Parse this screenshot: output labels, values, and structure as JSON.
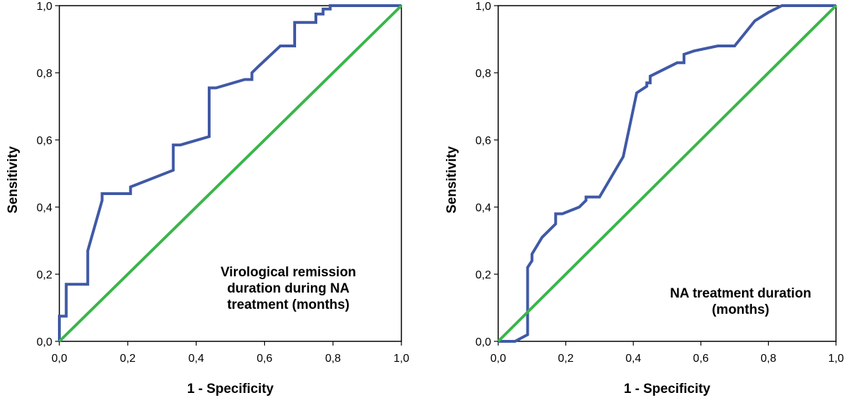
{
  "chart_data": [
    {
      "type": "line",
      "title": "",
      "annotation_lines": [
        "Virological remission",
        "duration during NA",
        "treatment (months)"
      ],
      "xlabel": "1 - Specificity",
      "ylabel": "Sensitivity",
      "xlim": [
        0,
        1
      ],
      "ylim": [
        0,
        1
      ],
      "xticks": [
        "0,0",
        "0,2",
        "0,4",
        "0,6",
        "0,8",
        "1,0"
      ],
      "yticks": [
        "0,0",
        "0,2",
        "0,4",
        "0,6",
        "0,8",
        "1,0"
      ],
      "colors": {
        "roc": "#4059a6",
        "reference": "#3ab54a"
      },
      "series": [
        {
          "name": "ROC curve",
          "x": [
            0.0,
            0.0,
            0.02,
            0.02,
            0.083,
            0.083,
            0.125,
            0.125,
            0.208,
            0.208,
            0.333,
            0.333,
            0.354,
            0.438,
            0.438,
            0.458,
            0.542,
            0.563,
            0.563,
            0.583,
            0.646,
            0.688,
            0.688,
            0.75,
            0.75,
            0.771,
            0.771,
            0.792,
            0.792,
            1.0
          ],
          "y": [
            0.0,
            0.075,
            0.075,
            0.17,
            0.17,
            0.27,
            0.42,
            0.44,
            0.44,
            0.46,
            0.51,
            0.585,
            0.585,
            0.61,
            0.755,
            0.755,
            0.78,
            0.78,
            0.8,
            0.82,
            0.88,
            0.88,
            0.95,
            0.95,
            0.975,
            0.975,
            0.99,
            0.99,
            1.0,
            1.0
          ]
        },
        {
          "name": "Reference line",
          "x": [
            0,
            1
          ],
          "y": [
            0,
            1
          ]
        }
      ]
    },
    {
      "type": "line",
      "title": "",
      "annotation_lines": [
        "NA treatment duration",
        "(months)"
      ],
      "xlabel": "1 - Specificity",
      "ylabel": "Sensitivity",
      "xlim": [
        0,
        1
      ],
      "ylim": [
        0,
        1
      ],
      "xticks": [
        "0,0",
        "0,2",
        "0,4",
        "0,6",
        "0,8",
        "1,0"
      ],
      "yticks": [
        "0,0",
        "0,2",
        "0,4",
        "0,6",
        "0,8",
        "1,0"
      ],
      "colors": {
        "roc": "#4059a6",
        "reference": "#3ab54a"
      },
      "series": [
        {
          "name": "ROC curve",
          "x": [
            0.0,
            0.05,
            0.087,
            0.087,
            0.1,
            0.1,
            0.13,
            0.15,
            0.15,
            0.17,
            0.17,
            0.19,
            0.24,
            0.26,
            0.26,
            0.3,
            0.37,
            0.41,
            0.44,
            0.44,
            0.45,
            0.45,
            0.53,
            0.55,
            0.55,
            0.58,
            0.65,
            0.7,
            0.76,
            0.8,
            0.84,
            1.0
          ],
          "y": [
            0.0,
            0.0,
            0.02,
            0.22,
            0.24,
            0.26,
            0.31,
            0.33,
            0.33,
            0.35,
            0.38,
            0.38,
            0.4,
            0.42,
            0.43,
            0.43,
            0.55,
            0.74,
            0.76,
            0.77,
            0.77,
            0.79,
            0.83,
            0.83,
            0.855,
            0.865,
            0.88,
            0.88,
            0.955,
            0.98,
            1.0,
            1.0
          ]
        },
        {
          "name": "Reference line",
          "x": [
            0,
            1
          ],
          "y": [
            0,
            1
          ]
        }
      ]
    }
  ]
}
